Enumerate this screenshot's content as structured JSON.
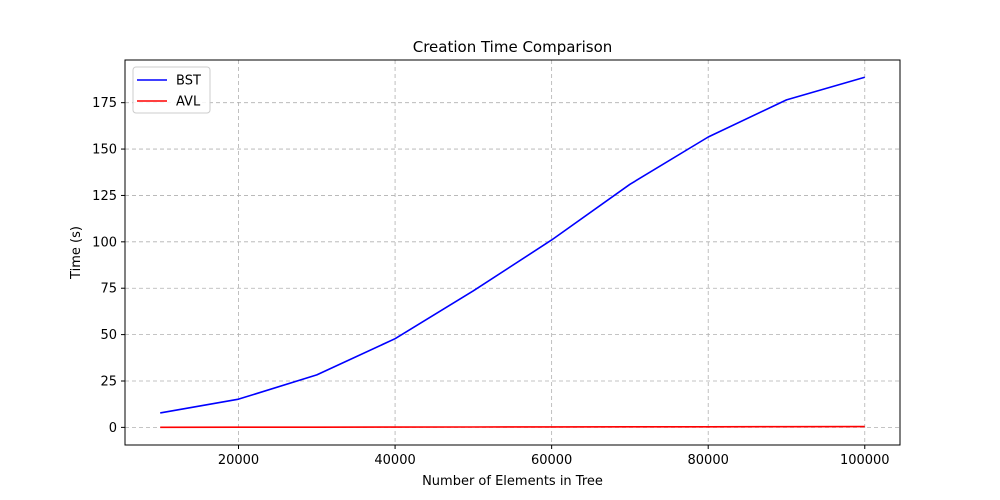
{
  "chart_data": {
    "type": "line",
    "title": "Creation Time Comparison",
    "xlabel": "Number of Elements in Tree",
    "ylabel": "Time (s)",
    "x": [
      10000,
      20000,
      30000,
      40000,
      50000,
      60000,
      70000,
      80000,
      90000,
      100000
    ],
    "xlim": [
      5500,
      104500
    ],
    "ylim": [
      -9.5,
      198
    ],
    "xticks": [
      20000,
      40000,
      60000,
      80000,
      100000
    ],
    "yticks": [
      0,
      25,
      50,
      75,
      100,
      125,
      150,
      175
    ],
    "grid": true,
    "legend_position": "upper-left",
    "series": [
      {
        "name": "BST",
        "color": "#0000ff",
        "values": [
          7.8,
          15.2,
          28.3,
          47.8,
          73.6,
          101.0,
          131.0,
          156.5,
          176.5,
          188.7
        ]
      },
      {
        "name": "AVL",
        "color": "#ff0000",
        "values": [
          0.05,
          0.09,
          0.12,
          0.16,
          0.2,
          0.24,
          0.28,
          0.32,
          0.36,
          0.41
        ]
      }
    ]
  }
}
